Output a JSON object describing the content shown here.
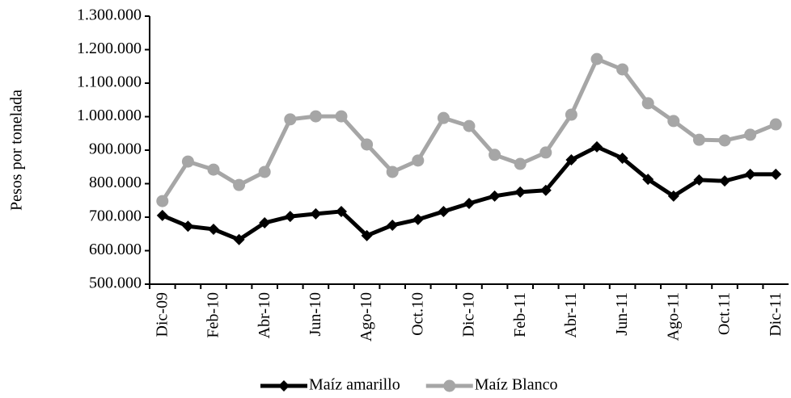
{
  "chart_data": {
    "type": "line",
    "y_label": "Pesos por tonelada",
    "categories": [
      "Dic-09",
      null,
      "Feb-10",
      null,
      "Abr-10",
      null,
      "Jun-10",
      null,
      "Ago-10",
      null,
      "Oct.10",
      null,
      "Dic-10",
      null,
      "Feb-11",
      null,
      "Abr-11",
      null,
      "Jun-11",
      null,
      "Ago-11",
      null,
      "Oct.11",
      null,
      "Dic-11"
    ],
    "series": [
      {
        "name": "Maíz amarillo",
        "color": "#000000",
        "marker": "diamond",
        "values": [
          705000,
          673000,
          664000,
          633000,
          683000,
          702000,
          710000,
          717000,
          645000,
          676000,
          693000,
          717000,
          741000,
          763000,
          775000,
          780000,
          871000,
          910000,
          876000,
          813000,
          763000,
          811000,
          808000,
          828000,
          828000
        ]
      },
      {
        "name": "Maíz Blanco",
        "color": "#a6a6a6",
        "marker": "circle",
        "values": [
          748000,
          866000,
          842000,
          796000,
          835000,
          992000,
          1001000,
          1001000,
          917000,
          835000,
          869000,
          996000,
          972000,
          886000,
          859000,
          893000,
          1006000,
          1172000,
          1141000,
          1040000,
          987000,
          931000,
          929000,
          946000,
          977000
        ]
      }
    ],
    "ylim": [
      500000,
      1300000
    ],
    "yticks": [
      {
        "value": 500000,
        "label": "500.000"
      },
      {
        "value": 600000,
        "label": "600.000"
      },
      {
        "value": 700000,
        "label": "700.000"
      },
      {
        "value": 800000,
        "label": "800.000"
      },
      {
        "value": 900000,
        "label": "900.000"
      },
      {
        "value": 1000000,
        "label": "1.000.000"
      },
      {
        "value": 1100000,
        "label": "1.100.000"
      },
      {
        "value": 1200000,
        "label": "1.200.000"
      },
      {
        "value": 1300000,
        "label": "1.300.000"
      }
    ],
    "grid": false,
    "legend": "bottom"
  }
}
